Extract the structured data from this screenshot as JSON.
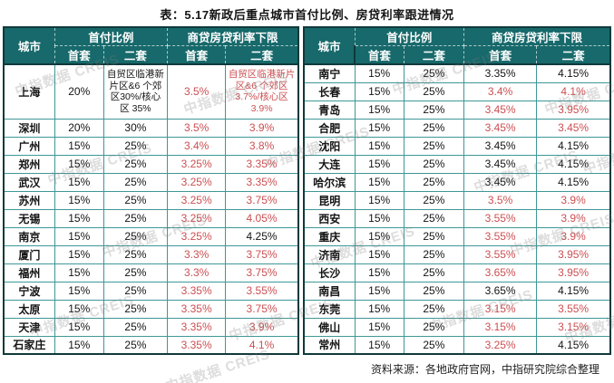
{
  "title": "表：5.17新政后重点城市首付比例、房贷利率跟进情况",
  "source_note": "资料来源：各地政府官网，中指研究院综合整理",
  "watermark_text": "中指数据 CREIS",
  "colors": {
    "header_bg": "#17696B",
    "inner_border": "#3E9798",
    "outer_border": "#10393B",
    "highlight_red": "#CC4F52"
  },
  "table": {
    "columns": {
      "city": "城市",
      "down_payment_group": "首付比例",
      "rate_group": "商贷房贷利率下限",
      "first_home": "首套",
      "second_home": "二套"
    },
    "left_rows": [
      {
        "city": "上海",
        "dp_first": "20%",
        "dp_second": "自贸区临港新片区&6 个郊区30%/核心区 35%",
        "rate_first": "3.5%",
        "rate_second": "自贸区临港新片区&6 个郊区 3.7%/核心区 3.9%",
        "rate_first_red": true,
        "rate_second_red": true,
        "rowspan": 3
      },
      {
        "city": "深圳",
        "dp_first": "20%",
        "dp_second": "30%",
        "rate_first": "3.5%",
        "rate_second": "3.9%",
        "rate_first_red": true,
        "rate_second_red": true
      },
      {
        "city": "广州",
        "dp_first": "15%",
        "dp_second": "25%",
        "rate_first": "3.4%",
        "rate_second": "3.8%",
        "rate_first_red": true,
        "rate_second_red": true
      },
      {
        "city": "郑州",
        "dp_first": "15%",
        "dp_second": "25%",
        "rate_first": "3.25%",
        "rate_second": "3.35%",
        "rate_first_red": true,
        "rate_second_red": true
      },
      {
        "city": "武汉",
        "dp_first": "15%",
        "dp_second": "25%",
        "rate_first": "3.25%",
        "rate_second": "3.35%",
        "rate_first_red": true,
        "rate_second_red": true
      },
      {
        "city": "苏州",
        "dp_first": "15%",
        "dp_second": "25%",
        "rate_first": "3.25%",
        "rate_second": "3.75%",
        "rate_first_red": true,
        "rate_second_red": true
      },
      {
        "city": "无锡",
        "dp_first": "15%",
        "dp_second": "25%",
        "rate_first": "3.25%",
        "rate_second": "4.05%",
        "rate_first_red": true,
        "rate_second_red": true
      },
      {
        "city": "南京",
        "dp_first": "15%",
        "dp_second": "25%",
        "rate_first": "3.25%",
        "rate_second": "4.25%",
        "rate_first_red": true,
        "rate_second_red": false
      },
      {
        "city": "厦门",
        "dp_first": "15%",
        "dp_second": "25%",
        "rate_first": "3.3%",
        "rate_second": "3.75%",
        "rate_first_red": true,
        "rate_second_red": true
      },
      {
        "city": "福州",
        "dp_first": "15%",
        "dp_second": "25%",
        "rate_first": "3.3%",
        "rate_second": "3.75%",
        "rate_first_red": true,
        "rate_second_red": true
      },
      {
        "city": "宁波",
        "dp_first": "15%",
        "dp_second": "25%",
        "rate_first": "3.35%",
        "rate_second": "3.55%",
        "rate_first_red": true,
        "rate_second_red": true
      },
      {
        "city": "太原",
        "dp_first": "15%",
        "dp_second": "25%",
        "rate_first": "3.35%",
        "rate_second": "3.75%",
        "rate_first_red": true,
        "rate_second_red": true
      },
      {
        "city": "天津",
        "dp_first": "15%",
        "dp_second": "25%",
        "rate_first": "3.35%",
        "rate_second": "3.9%",
        "rate_first_red": true,
        "rate_second_red": true
      },
      {
        "city": "石家庄",
        "dp_first": "15%",
        "dp_second": "25%",
        "rate_first": "3.35%",
        "rate_second": "4.1%",
        "rate_first_red": true,
        "rate_second_red": true
      }
    ],
    "right_rows": [
      {
        "city": "南宁",
        "dp_first": "15%",
        "dp_second": "25%",
        "rate_first": "3.35%",
        "rate_second": "4.15%",
        "rate_first_red": false,
        "rate_second_red": false
      },
      {
        "city": "长春",
        "dp_first": "15%",
        "dp_second": "25%",
        "rate_first": "3.4%",
        "rate_second": "4.1%",
        "rate_first_red": true,
        "rate_second_red": true
      },
      {
        "city": "青岛",
        "dp_first": "15%",
        "dp_second": "25%",
        "rate_first": "3.45%",
        "rate_second": "3.95%",
        "rate_first_red": true,
        "rate_second_red": true
      },
      {
        "city": "合肥",
        "dp_first": "15%",
        "dp_second": "25%",
        "rate_first": "3.45%",
        "rate_second": "3.45%",
        "rate_first_red": true,
        "rate_second_red": true
      },
      {
        "city": "沈阳",
        "dp_first": "15%",
        "dp_second": "25%",
        "rate_first": "3.45%",
        "rate_second": "4.15%",
        "rate_first_red": false,
        "rate_second_red": false
      },
      {
        "city": "大连",
        "dp_first": "15%",
        "dp_second": "25%",
        "rate_first": "3.45%",
        "rate_second": "4.15%",
        "rate_first_red": false,
        "rate_second_red": false
      },
      {
        "city": "哈尔滨",
        "dp_first": "15%",
        "dp_second": "25%",
        "rate_first": "3.45%",
        "rate_second": "4.15%",
        "rate_first_red": false,
        "rate_second_red": false
      },
      {
        "city": "昆明",
        "dp_first": "15%",
        "dp_second": "25%",
        "rate_first": "3.5%",
        "rate_second": "3.9%",
        "rate_first_red": true,
        "rate_second_red": true
      },
      {
        "city": "西安",
        "dp_first": "15%",
        "dp_second": "25%",
        "rate_first": "3.55%",
        "rate_second": "3.9%",
        "rate_first_red": true,
        "rate_second_red": true
      },
      {
        "city": "重庆",
        "dp_first": "15%",
        "dp_second": "25%",
        "rate_first": "3.55%",
        "rate_second": "3.9%",
        "rate_first_red": true,
        "rate_second_red": true
      },
      {
        "city": "济南",
        "dp_first": "15%",
        "dp_second": "25%",
        "rate_first": "3.55%",
        "rate_second": "3.95%",
        "rate_first_red": true,
        "rate_second_red": true
      },
      {
        "city": "长沙",
        "dp_first": "15%",
        "dp_second": "25%",
        "rate_first": "3.65%",
        "rate_second": "3.95%",
        "rate_first_red": true,
        "rate_second_red": true
      },
      {
        "city": "南昌",
        "dp_first": "15%",
        "dp_second": "25%",
        "rate_first": "3.65%",
        "rate_second": "4.15%",
        "rate_first_red": false,
        "rate_second_red": false
      },
      {
        "city": "东莞",
        "dp_first": "15%",
        "dp_second": "25%",
        "rate_first": "3.15%",
        "rate_second": "3.55%",
        "rate_first_red": true,
        "rate_second_red": true
      },
      {
        "city": "佛山",
        "dp_first": "15%",
        "dp_second": "25%",
        "rate_first": "3.15%",
        "rate_second": "3.15%",
        "rate_first_red": true,
        "rate_second_red": true
      },
      {
        "city": "常州",
        "dp_first": "15%",
        "dp_second": "25%",
        "rate_first": "3.25%",
        "rate_second": "4.15%",
        "rate_first_red": true,
        "rate_second_red": false
      }
    ]
  }
}
